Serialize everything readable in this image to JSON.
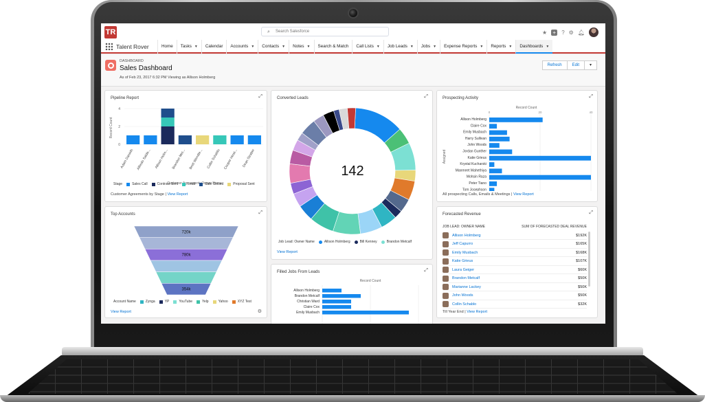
{
  "app": {
    "logo_text": "TR",
    "name": "Talent Rover",
    "search_placeholder": "Search Salesforce"
  },
  "nav": {
    "items": [
      {
        "label": "Home",
        "caret": false
      },
      {
        "label": "Tasks",
        "caret": true
      },
      {
        "label": "Calendar",
        "caret": false
      },
      {
        "label": "Accounts",
        "caret": true
      },
      {
        "label": "Contacts",
        "caret": true
      },
      {
        "label": "Notes",
        "caret": true
      },
      {
        "label": "Search & Match",
        "caret": false
      },
      {
        "label": "Call Lists",
        "caret": true
      },
      {
        "label": "Job Leads",
        "caret": true
      },
      {
        "label": "Jobs",
        "caret": true
      },
      {
        "label": "Expense Reports",
        "caret": true
      },
      {
        "label": "Reports",
        "caret": true
      },
      {
        "label": "Dashboards",
        "caret": true,
        "active": true
      }
    ]
  },
  "header": {
    "eyebrow": "DASHBOARD",
    "title": "Sales Dashboard",
    "subtitle": "As of Feb 23, 2017 6:32 PM Viewing as Allison Holmberg",
    "refresh_label": "Refresh",
    "edit_label": "Edit"
  },
  "pipeline": {
    "title": "Pipeline Report",
    "ylabel": "Record Count",
    "xlabel": "Customer Agreement: Owner Name",
    "footer_text": "Customer Agreements by Stage",
    "footer_link": "View Report",
    "legend_title": "Stage",
    "legend": [
      {
        "label": "Sales Call",
        "color": "#1589ee"
      },
      {
        "label": "Contract Sent",
        "color": "#1b2a5c"
      },
      {
        "label": "Lead",
        "color": "#36c7b8"
      },
      {
        "label": "Sale Closed",
        "color": "#1f4e8c"
      },
      {
        "label": "Proposal Sent",
        "color": "#e8d77a"
      }
    ]
  },
  "converted": {
    "title": "Converted Leads",
    "center_value": "142",
    "legend_title": "Job Lead: Owner Name",
    "legend": [
      {
        "label": "Allison Holmberg",
        "color": "#1589ee"
      },
      {
        "label": "Bill Kenney",
        "color": "#1b2a5c"
      },
      {
        "label": "Brandon Metcalf",
        "color": "#7ce0d3"
      }
    ],
    "footer_link": "View Report"
  },
  "prospecting": {
    "title": "Prospecting Activity",
    "xlabel": "Record Count",
    "ylabel": "Assigned",
    "footer_text": "All prospecting Calls, Emails & Meetings",
    "footer_link": "View Report"
  },
  "top_accounts": {
    "title": "Top Accounts",
    "legend_title": "Account Name",
    "legend": [
      {
        "label": "Zynga",
        "color": "#2fb5c3"
      },
      {
        "label": "YP",
        "color": "#1b2a5c"
      },
      {
        "label": "YouTube",
        "color": "#7ce0d3"
      },
      {
        "label": "Yelp",
        "color": "#3fc2a8"
      },
      {
        "label": "Yahoo",
        "color": "#e8d77a"
      },
      {
        "label": "XYZ Test",
        "color": "#e07a2b"
      }
    ],
    "footer_link": "View Report"
  },
  "filled_jobs": {
    "title": "Filled Jobs From Leads",
    "xlabel": "Record Count"
  },
  "forecast": {
    "title": "Forecasted Revenue",
    "col1": "JOB LEAD: OWNER NAME",
    "col2": "SUM OF FORECASTED DEAL REVENUE",
    "rows": [
      {
        "name": "Allison Holmberg",
        "value": "$192K"
      },
      {
        "name": "Jeff Capurro",
        "value": "$165K"
      },
      {
        "name": "Emily Musbach",
        "value": "$168K"
      },
      {
        "name": "Katie Grieus",
        "value": "$107K"
      },
      {
        "name": "Laura Geiger",
        "value": "$60K"
      },
      {
        "name": "Brandon Metcalf",
        "value": "$50K"
      },
      {
        "name": "Marianne Lackey",
        "value": "$50K"
      },
      {
        "name": "John Woods",
        "value": "$50K"
      },
      {
        "name": "Collin Schablo",
        "value": "$32K"
      }
    ],
    "footer_text": "Till Year End",
    "footer_link": "View Report"
  },
  "chart_data": [
    {
      "type": "bar",
      "title": "Pipeline Report",
      "ylabel": "Record Count",
      "xlabel": "Customer Agreement: Owner Name",
      "ylim": [
        0,
        4
      ],
      "categories": [
        "Adam Danielh",
        "Alfredo Salda...",
        "Allison Holm...",
        "Brandon Met...",
        "Brett Wendte...",
        "Collin Schablo",
        "Cooper Hinst...",
        "Dean Stratter"
      ],
      "series": [
        {
          "name": "Sales Call",
          "values": [
            1,
            1,
            0,
            0,
            0,
            0,
            1,
            1
          ]
        },
        {
          "name": "Contract Sent",
          "values": [
            0,
            0,
            2,
            0,
            0,
            0,
            0,
            0
          ]
        },
        {
          "name": "Lead",
          "values": [
            0,
            0,
            1,
            0,
            0,
            1,
            0,
            0
          ]
        },
        {
          "name": "Sale Closed",
          "values": [
            0,
            0,
            1,
            1,
            0,
            0,
            0,
            0
          ]
        },
        {
          "name": "Proposal Sent",
          "values": [
            0,
            0,
            0,
            0,
            1,
            0,
            0,
            0
          ]
        }
      ]
    },
    {
      "type": "pie",
      "title": "Converted Leads",
      "total": 142,
      "values": [
        18,
        6,
        10,
        4,
        7,
        5,
        3,
        6,
        8,
        10,
        9,
        6,
        5,
        4,
        7,
        5,
        4,
        3,
        6,
        4,
        4,
        2,
        3,
        3
      ],
      "colors": [
        "#1589ee",
        "#4bc076",
        "#7ce0d3",
        "#e8d77a",
        "#e07a2b",
        "#54698d",
        "#1b2a5c",
        "#2fb5c3",
        "#9bd5f7",
        "#62d4b6",
        "#3fc2a8",
        "#1a7fd6",
        "#c5a3f0",
        "#8c64d4",
        "#e37aaf",
        "#b95ba3",
        "#d3a6e8",
        "#a1a1c9",
        "#6b7ea8",
        "#9c98c0",
        "#000000",
        "#3a4a8a",
        "#d9d9d9",
        "#c23934"
      ]
    },
    {
      "type": "bar",
      "title": "Prospecting Activity",
      "orientation": "horizontal",
      "xlabel": "Record Count",
      "ylabel": "Assigned",
      "xlim": [
        0,
        40
      ],
      "categories": [
        "Allison Holmberg",
        "Claire Cox",
        "Emily Musbach",
        "Harry Sullivan",
        "John Woods",
        "Jordan Gunther",
        "Katie Grieus",
        "Krystal Kucharski",
        "Manmeet Mahethiya",
        "Mohsin Raza",
        "Peter Tiano",
        "Tom Josephson"
      ],
      "values": [
        21,
        3,
        7,
        8,
        4,
        9,
        40,
        2,
        5,
        41,
        3,
        2
      ]
    },
    {
      "type": "bar",
      "title": "Top Accounts",
      "orientation": "funnel",
      "labels": [
        "720k",
        "",
        "780k",
        "",
        "",
        "354k"
      ],
      "values": [
        720,
        600,
        780,
        520,
        450,
        354
      ]
    },
    {
      "type": "bar",
      "title": "Filled Jobs From Leads",
      "orientation": "horizontal",
      "xlabel": "Record Count",
      "categories": [
        "Allison Holmberg",
        "Brandon Metcalf",
        "Christian Ward",
        "Claire Cox",
        "Emily Musbach"
      ],
      "values": [
        2,
        4,
        3,
        3,
        9
      ],
      "xlim": [
        0,
        10
      ]
    }
  ]
}
